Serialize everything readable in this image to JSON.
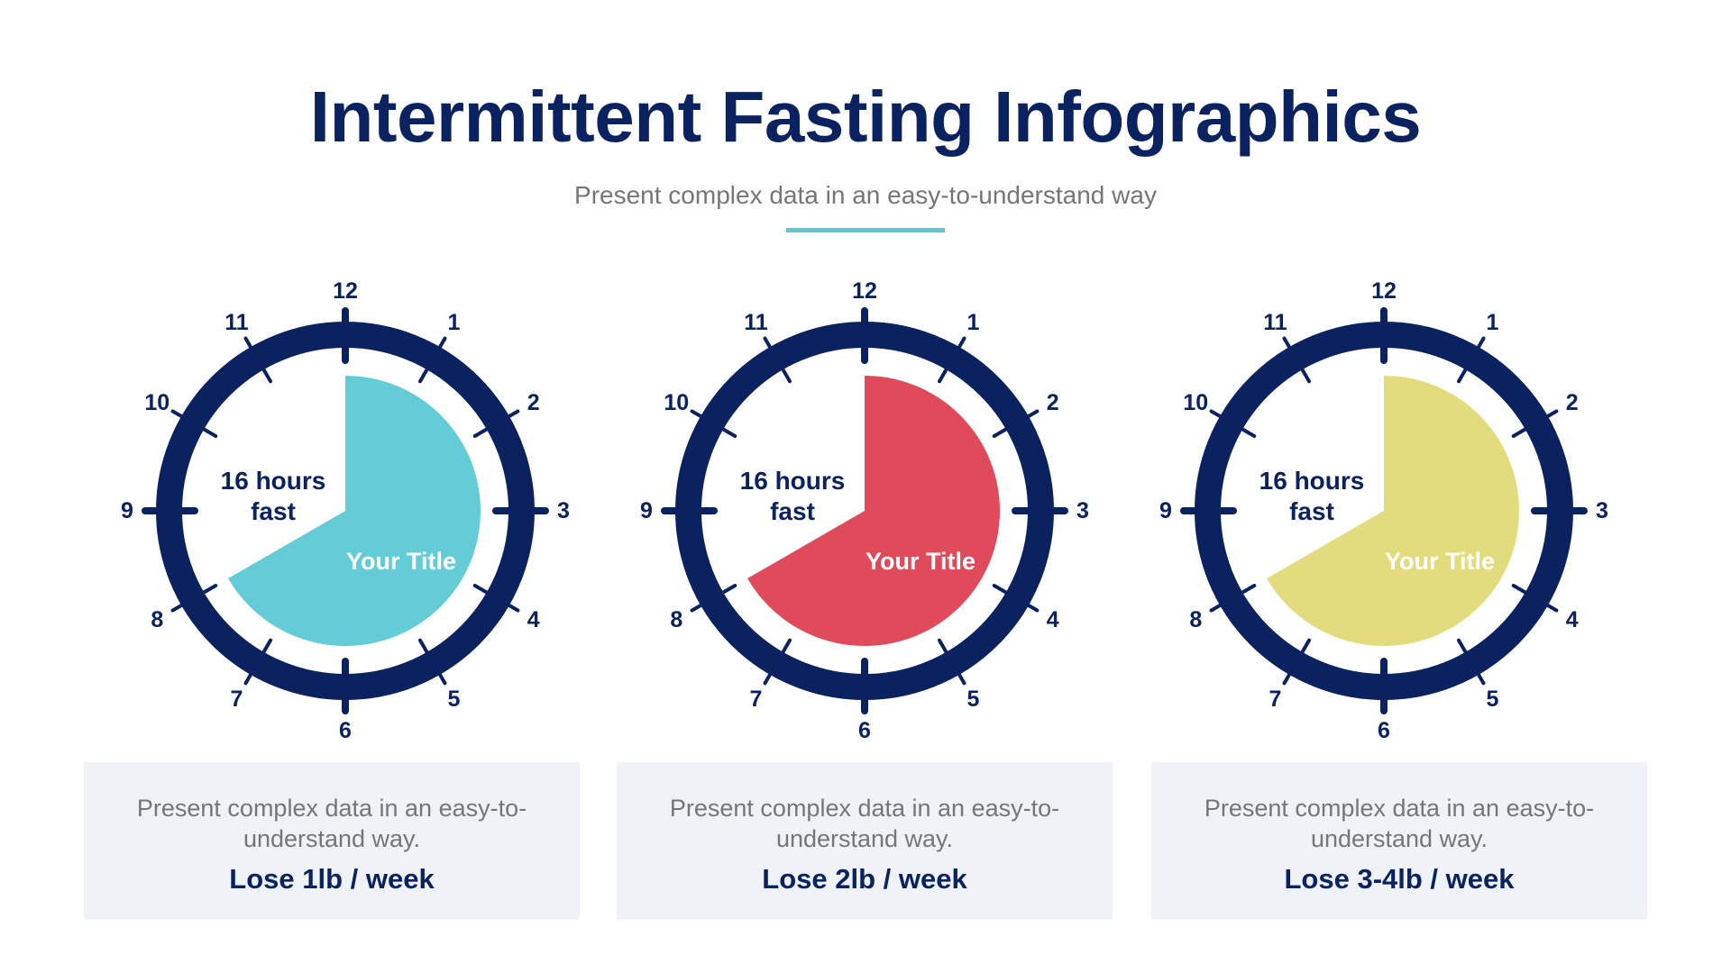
{
  "header": {
    "title": "Intermittent Fasting Infographics",
    "subtitle": "Present complex data in an easy-to-understand way"
  },
  "colors": {
    "navy": "#0b2260",
    "accent_line": "#62c4cc",
    "card_bg": "#eff2f6",
    "muted_text": "#767676"
  },
  "clock_numbers": [
    "12",
    "1",
    "2",
    "3",
    "4",
    "5",
    "6",
    "7",
    "8",
    "9",
    "10",
    "11"
  ],
  "clocks": [
    {
      "fast_label_line1": "16 hours",
      "fast_label_line2": "fast",
      "slice_label": "Your Title",
      "slice_color": "#64ccd6",
      "slice_start_hour": 0,
      "slice_end_hour": 8,
      "card": {
        "description": "Present complex data in an easy-to-understand way.",
        "result": "Lose 1lb / week"
      }
    },
    {
      "fast_label_line1": "16 hours",
      "fast_label_line2": "fast",
      "slice_label": "Your Title",
      "slice_color": "#df4b5b",
      "slice_start_hour": 0,
      "slice_end_hour": 8,
      "card": {
        "description": "Present complex data in an easy-to-understand way.",
        "result": "Lose 2lb / week"
      }
    },
    {
      "fast_label_line1": "16 hours",
      "fast_label_line2": "fast",
      "slice_label": "Your Title",
      "slice_color": "#e3dc7e",
      "slice_start_hour": 0,
      "slice_end_hour": 8,
      "card": {
        "description": "Present complex data in an easy-to-understand way.",
        "result": "Lose 3-4lb / week"
      }
    }
  ]
}
